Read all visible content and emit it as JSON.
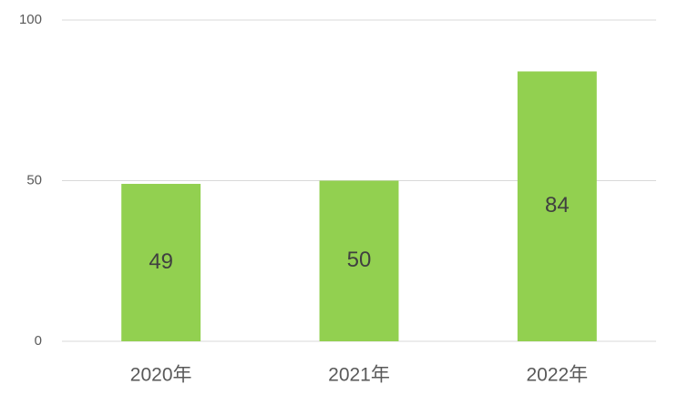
{
  "chart_data": {
    "type": "bar",
    "categories": [
      "2020年",
      "2021年",
      "2022年"
    ],
    "values": [
      49,
      50,
      84
    ],
    "color": "#92d050",
    "ylim": [
      0,
      100
    ],
    "yticks": [
      0,
      50,
      100
    ],
    "grid": true
  }
}
